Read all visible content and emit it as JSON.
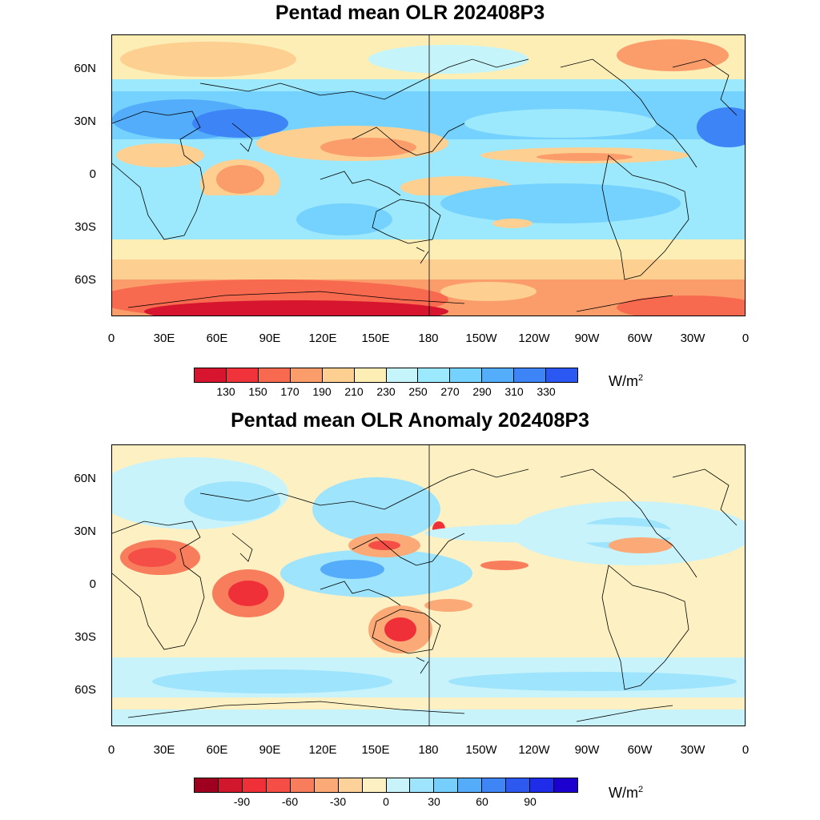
{
  "panels": [
    {
      "title": "Pentad mean OLR 202408P3",
      "lat_labels": [
        "60N",
        "30N",
        "0",
        "30S",
        "60S"
      ],
      "lon_labels": [
        "0",
        "30E",
        "60E",
        "90E",
        "120E",
        "150E",
        "180",
        "150W",
        "120W",
        "90W",
        "60W",
        "30W",
        "0"
      ],
      "colorbar": {
        "colors": [
          "#d7152f",
          "#f0333a",
          "#f86a4f",
          "#fb9d6b",
          "#fdd092",
          "#fdeeb6",
          "#c5f5fa",
          "#9ce8fd",
          "#75d2fe",
          "#53adfb",
          "#3d84f7",
          "#2b58f2"
        ],
        "labels": [
          "130",
          "150",
          "170",
          "190",
          "210",
          "230",
          "250",
          "270",
          "290",
          "310",
          "330"
        ],
        "unit": "W/m",
        "unit_sup": "2"
      }
    },
    {
      "title": "Pentad mean OLR Anomaly 202408P3",
      "lat_labels": [
        "60N",
        "30N",
        "0",
        "30S",
        "60S"
      ],
      "lon_labels": [
        "0",
        "30E",
        "60E",
        "90E",
        "120E",
        "150E",
        "180",
        "150W",
        "120W",
        "90W",
        "60W",
        "30W",
        "0"
      ],
      "colorbar": {
        "colors": [
          "#a00020",
          "#d0172c",
          "#f03038",
          "#f44e46",
          "#f77d5c",
          "#fbaa77",
          "#fdd19a",
          "#fdf0c2",
          "#c8f3fb",
          "#9fe4fd",
          "#76cefd",
          "#55acfb",
          "#3f85f6",
          "#2d59f0",
          "#1f2cea",
          "#1b00d0"
        ],
        "labels": [
          "-90",
          "-60",
          "-30",
          "0",
          "30",
          "60",
          "90"
        ],
        "unit": "W/m",
        "unit_sup": "2"
      }
    }
  ]
}
